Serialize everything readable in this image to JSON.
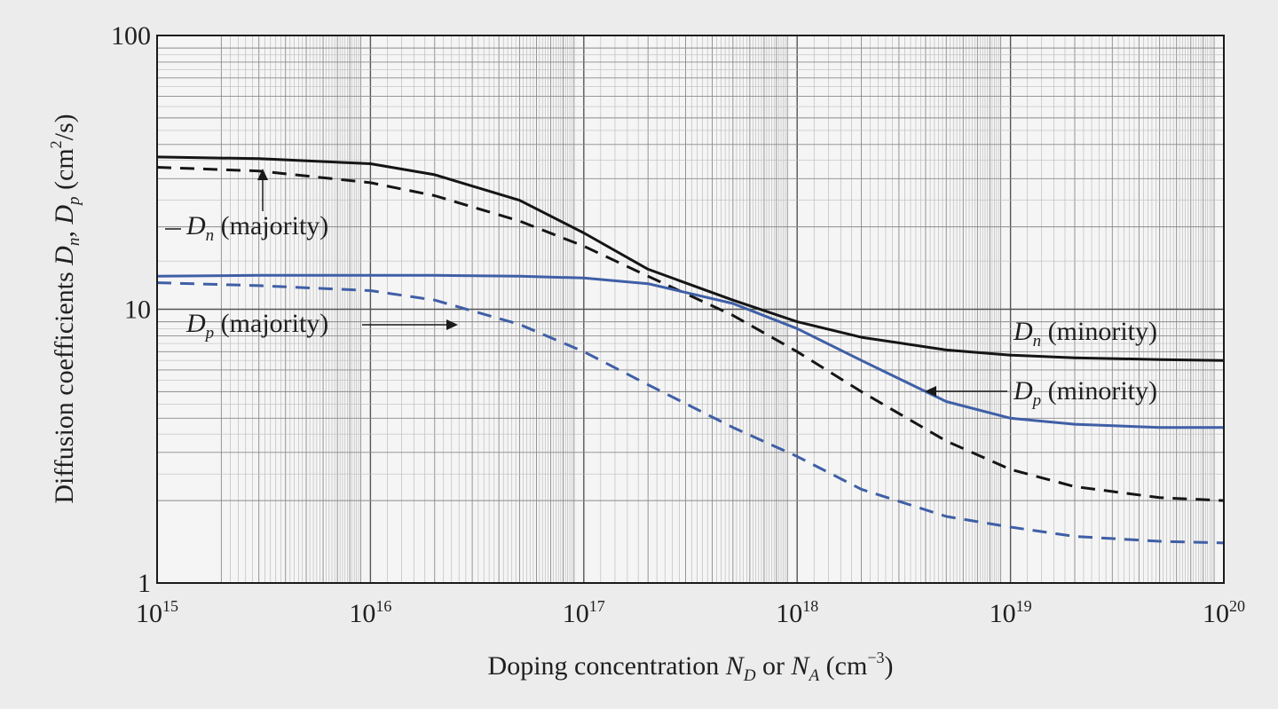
{
  "chart_data": {
    "type": "line",
    "title": "",
    "x_scale": "log",
    "y_scale": "log",
    "xlim": [
      1000000000000000.0,
      1e+20
    ],
    "ylim": [
      1,
      100
    ],
    "grid": true,
    "x_ticks": [
      {
        "base": "10",
        "exp": "15",
        "value": 1000000000000000.0
      },
      {
        "base": "10",
        "exp": "16",
        "value": 1e+16
      },
      {
        "base": "10",
        "exp": "17",
        "value": 1e+17
      },
      {
        "base": "10",
        "exp": "18",
        "value": 1e+18
      },
      {
        "base": "10",
        "exp": "19",
        "value": 1e+19
      },
      {
        "base": "10",
        "exp": "20",
        "value": 1e+20
      }
    ],
    "y_ticks": [
      {
        "label": "100",
        "value": 100
      },
      {
        "label": "10",
        "value": 10
      },
      {
        "label": "1",
        "value": 1
      }
    ],
    "xlabel": {
      "prefix": "Doping concentration ",
      "v1": "N",
      "v1_sub": "D",
      "middle": " or ",
      "v2": "N",
      "v2_sub": "A",
      "unit_open": " (cm",
      "unit_exp": "−3",
      "unit_close": ")"
    },
    "ylabel": {
      "prefix": "Diffusion coefficients ",
      "v1": "D",
      "v1_sub": "n",
      "sep": ", ",
      "v2": "D",
      "v2_sub": "p",
      "unit_open": " (cm",
      "unit_exp": "2",
      "unit_close": "/s)"
    },
    "series": [
      {
        "name": "D_n (minority)",
        "color": "#151515",
        "dash": "solid",
        "x": [
          1000000000000000.0,
          3000000000000000.0,
          1e+16,
          2e+16,
          5e+16,
          1e+17,
          2e+17,
          5e+17,
          1e+18,
          2e+18,
          5e+18,
          1e+19,
          2e+19,
          5e+19,
          1e+20
        ],
        "y": [
          36,
          35.5,
          34,
          31,
          25,
          19,
          14,
          10.8,
          9.0,
          7.9,
          7.1,
          6.8,
          6.65,
          6.55,
          6.5
        ]
      },
      {
        "name": "D_n (majority)",
        "color": "#151515",
        "dash": "dashed",
        "x": [
          1000000000000000.0,
          3000000000000000.0,
          1e+16,
          2e+16,
          5e+16,
          1e+17,
          2e+17,
          5e+17,
          1e+18,
          2e+18,
          5e+18,
          1e+19,
          2e+19,
          5e+19,
          1e+20
        ],
        "y": [
          33,
          32,
          29,
          26,
          21,
          17,
          13.2,
          9.5,
          7.0,
          5.0,
          3.3,
          2.6,
          2.25,
          2.05,
          2.0
        ]
      },
      {
        "name": "D_p (minority)",
        "color": "#3f5fa6",
        "dash": "solid",
        "x": [
          1000000000000000.0,
          3000000000000000.0,
          1e+16,
          2e+16,
          5e+16,
          1e+17,
          2e+17,
          5e+17,
          1e+18,
          2e+18,
          5e+18,
          1e+19,
          2e+19,
          5e+19,
          1e+20
        ],
        "y": [
          13.2,
          13.3,
          13.3,
          13.3,
          13.2,
          13.0,
          12.4,
          10.5,
          8.5,
          6.5,
          4.6,
          4.0,
          3.8,
          3.7,
          3.7
        ]
      },
      {
        "name": "D_p (majority)",
        "color": "#3f5fa6",
        "dash": "dashed",
        "x": [
          1000000000000000.0,
          3000000000000000.0,
          1e+16,
          2e+16,
          5e+16,
          1e+17,
          2e+17,
          5e+17,
          1e+18,
          2e+18,
          5e+18,
          1e+19,
          2e+19,
          5e+19,
          1e+20
        ],
        "y": [
          12.5,
          12.2,
          11.7,
          10.8,
          8.8,
          7.0,
          5.3,
          3.7,
          2.9,
          2.2,
          1.75,
          1.6,
          1.48,
          1.42,
          1.4
        ]
      }
    ],
    "annotations": [
      {
        "var": "D",
        "sub": "n",
        "text": " (majority)"
      },
      {
        "var": "D",
        "sub": "p",
        "text": " (majority)"
      },
      {
        "var": "D",
        "sub": "n",
        "text": " (minority)"
      },
      {
        "var": "D",
        "sub": "p",
        "text": " (minority)"
      }
    ]
  }
}
